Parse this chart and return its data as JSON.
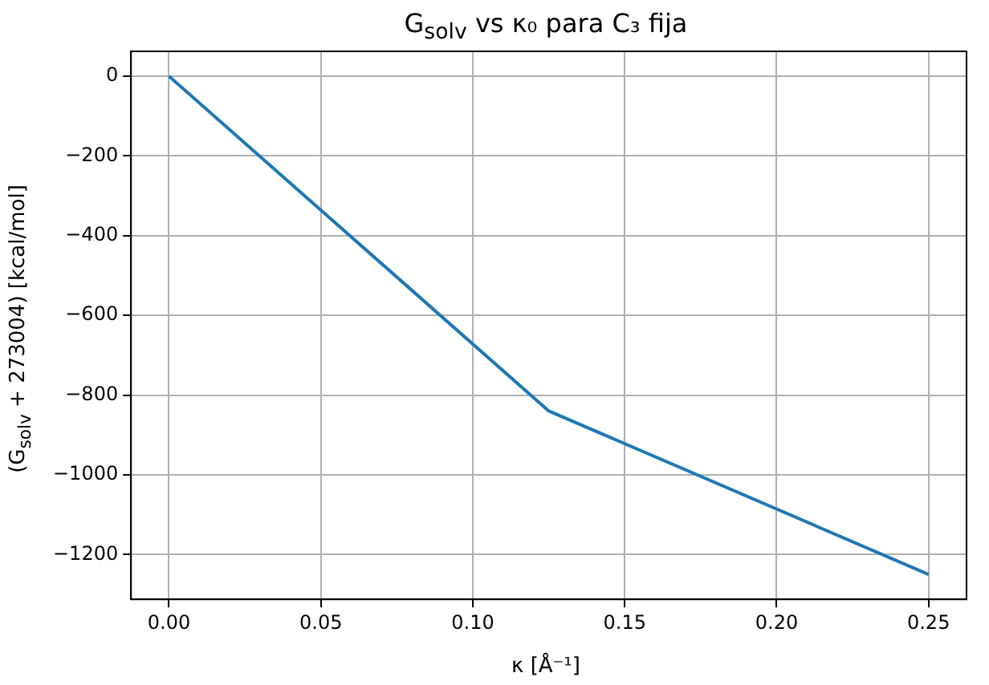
{
  "chart_data": {
    "type": "line",
    "title": "G$_{solv}$ vs κ₀ para C₃ fija",
    "xlabel": "κ [Å⁻¹]",
    "ylabel": "(G$_{solv}$ + 273004) [kcal/mol]",
    "x": [
      0,
      0.125,
      0.25
    ],
    "series": [
      {
        "color": "#1f77b4",
        "values": [
          0,
          -840,
          -1250
        ]
      }
    ],
    "xlim": [
      -0.0125,
      0.2625
    ],
    "xticks": [
      {
        "value": 0,
        "label": "0.00"
      },
      0.05,
      {
        "value": 0.1,
        "label": "0.10"
      },
      0.15,
      {
        "value": 0.2,
        "label": "0.20"
      },
      0.25
    ],
    "ylim": [
      -1312.5,
      62.5
    ],
    "yticks": [
      -1200,
      -1000,
      -800,
      -600,
      -400,
      -200,
      0
    ],
    "grid": true,
    "legend": false,
    "marker": "none",
    "line_style": "solid"
  }
}
